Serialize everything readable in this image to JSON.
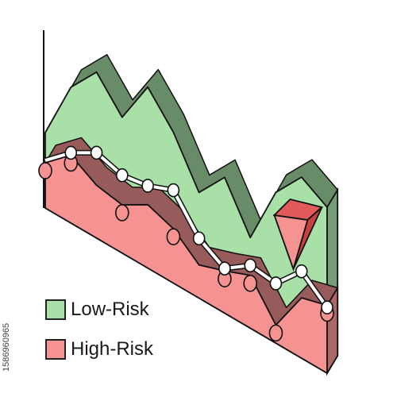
{
  "chart_data": {
    "type": "area",
    "title": "",
    "xlabel": "",
    "ylabel": "",
    "points": 12,
    "series": [
      {
        "name": "Low-Risk",
        "values": [
          5,
          9,
          11,
          9,
          12,
          10,
          7,
          9,
          6,
          10,
          12,
          11
        ],
        "color": "#a8e0a8"
      },
      {
        "name": "High-Risk",
        "values": [
          3,
          4.5,
          3.5,
          3.2,
          4.2,
          3.6,
          2.2,
          2.8,
          3.5,
          1.2,
          4,
          4.5
        ],
        "color": "#f59393"
      }
    ],
    "line_series": {
      "values": [
        2,
        3.5,
        4.5,
        4,
        4.3,
        5,
        2.8,
        1.8,
        3,
        2.8,
        4.6,
        3.2
      ],
      "color": "#ffffff"
    },
    "peak_marker": {
      "index": 9,
      "color": "#e05a5a"
    }
  },
  "legend": {
    "items": [
      {
        "label": "Low-Risk",
        "color": "#a8e0a8"
      },
      {
        "label": "High-Risk",
        "color": "#f59393"
      }
    ]
  },
  "watermark_id": "1586960965"
}
